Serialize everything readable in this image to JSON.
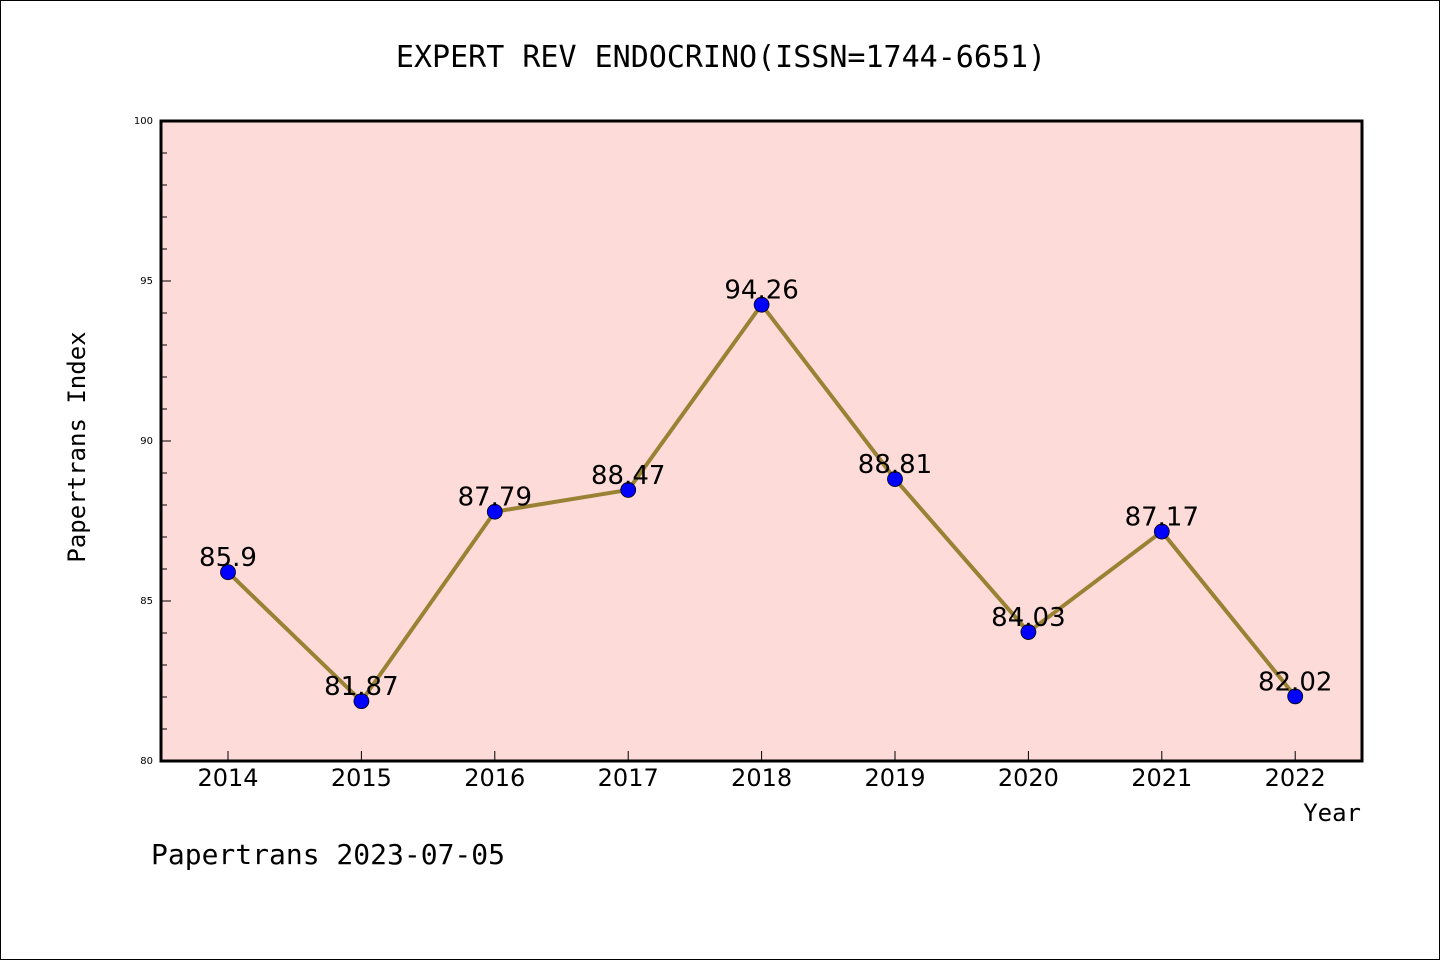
{
  "chart_data": {
    "type": "line",
    "title": "EXPERT REV ENDOCRINO(ISSN=1744-6651)",
    "xlabel": "Year",
    "ylabel": "Papertrans Index",
    "categories": [
      "2014",
      "2015",
      "2016",
      "2017",
      "2018",
      "2019",
      "2020",
      "2021",
      "2022"
    ],
    "series": [
      {
        "values": [
          85.9,
          81.87,
          87.79,
          88.47,
          94.26,
          88.81,
          84.03,
          87.17,
          82.02
        ],
        "data_labels": [
          "85.9",
          "81.87",
          "87.79",
          "88.47",
          "94.26",
          "88.81",
          "84.03",
          "87.17",
          "82.02"
        ],
        "line_color": "#9a8235",
        "marker_color": "#0000ff"
      }
    ],
    "ylim": [
      80,
      100
    ],
    "yticks": [
      80,
      85,
      90,
      95,
      100
    ],
    "ytick_labels": [
      "80",
      "85",
      "90",
      "95",
      "100"
    ],
    "plot_background": "#fddbd8",
    "grid": false,
    "footer": "Papertrans 2023-07-05"
  }
}
